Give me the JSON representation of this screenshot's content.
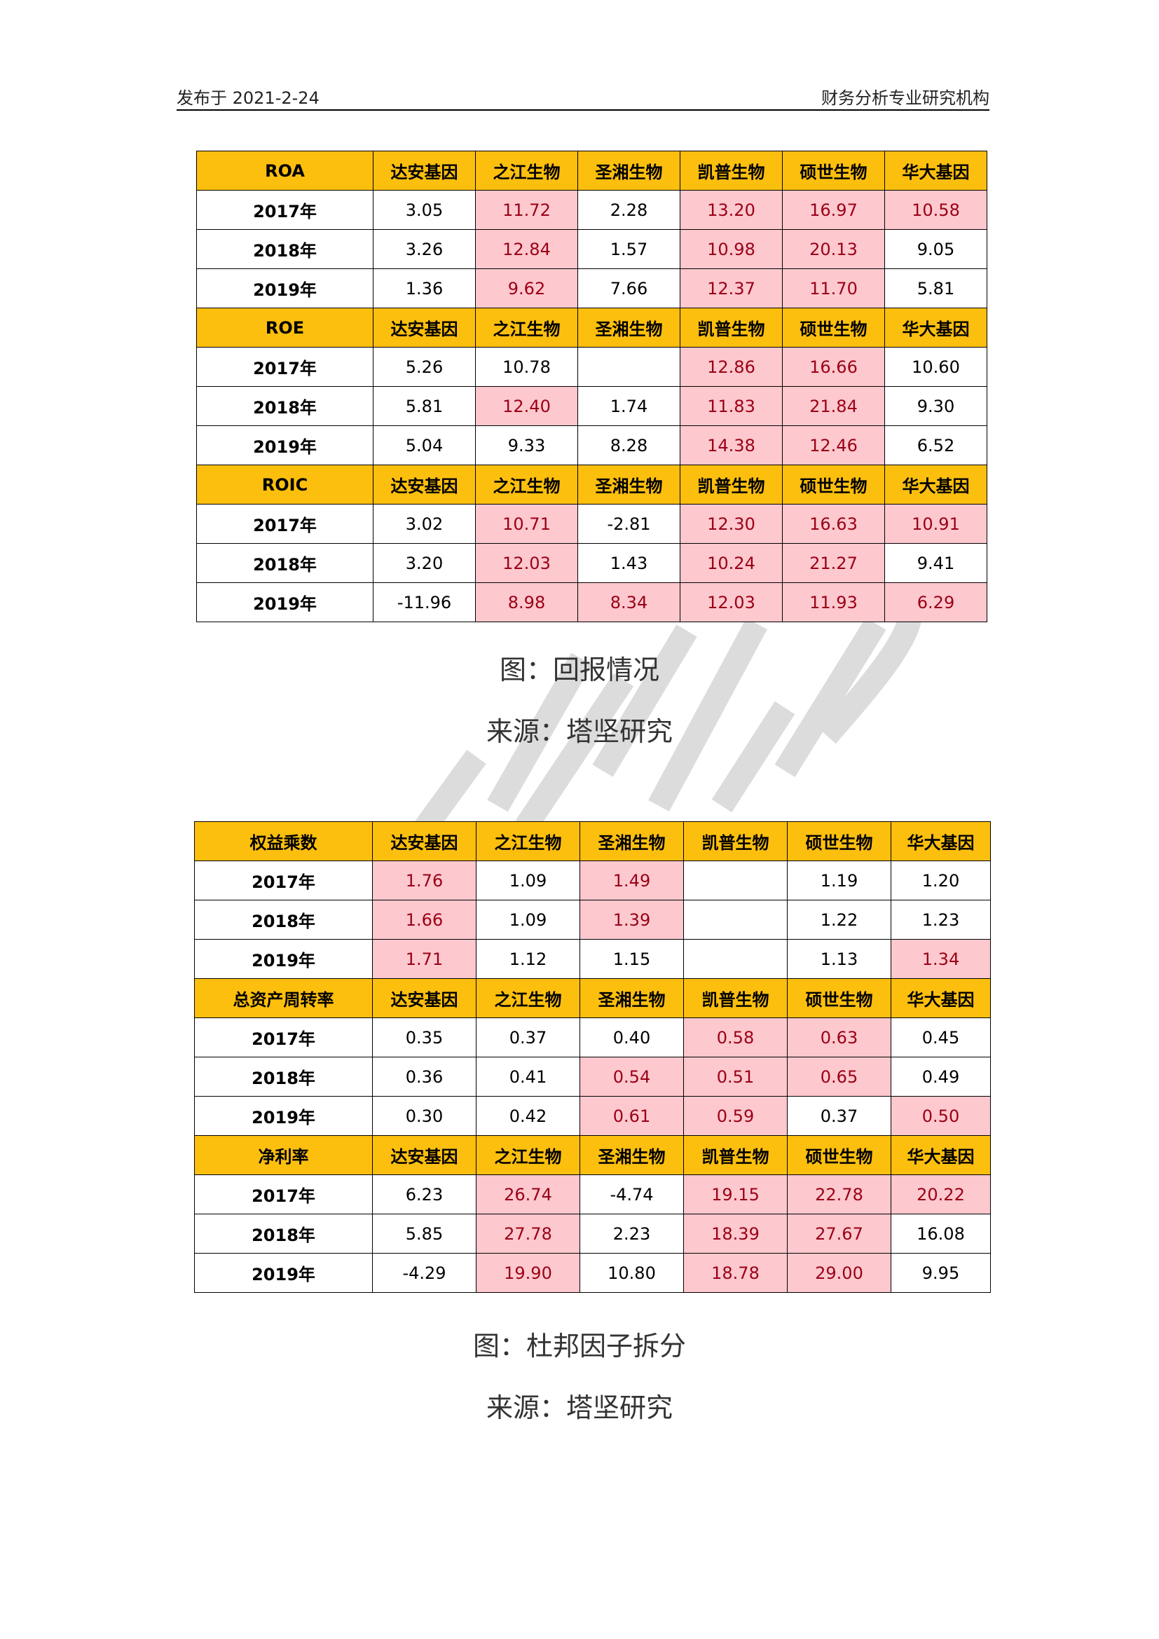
{
  "header": {
    "left": "发布于 2021-2-24",
    "right": "财务分析专业研究机构"
  },
  "watermark": {
    "text": "究",
    "color": "#dddddd"
  },
  "colors": {
    "header_fill": "#fdbf0e",
    "highlight_fill": "#fdc8ce",
    "highlight_text": "#9a0016"
  },
  "table1": {
    "sections": [
      {
        "header": [
          "ROA",
          "达安基因",
          "之江生物",
          "圣湘生物",
          "凯普生物",
          "硕世生物",
          "华大基因"
        ],
        "rows": [
          {
            "cells": [
              "2017年",
              "3.05",
              "11.72",
              "2.28",
              "13.20",
              "16.97",
              "10.58"
            ],
            "hl": [
              2,
              4,
              5,
              6
            ]
          },
          {
            "cells": [
              "2018年",
              "3.26",
              "12.84",
              "1.57",
              "10.98",
              "20.13",
              "9.05"
            ],
            "hl": [
              2,
              4,
              5
            ]
          },
          {
            "cells": [
              "2019年",
              "1.36",
              "9.62",
              "7.66",
              "12.37",
              "11.70",
              "5.81"
            ],
            "hl": [
              2,
              4,
              5
            ]
          }
        ]
      },
      {
        "header": [
          "ROE",
          "达安基因",
          "之江生物",
          "圣湘生物",
          "凯普生物",
          "硕世生物",
          "华大基因"
        ],
        "rows": [
          {
            "cells": [
              "2017年",
              "5.26",
              "10.78",
              "",
              "12.86",
              "16.66",
              "10.60"
            ],
            "hl": [
              4,
              5
            ]
          },
          {
            "cells": [
              "2018年",
              "5.81",
              "12.40",
              "1.74",
              "11.83",
              "21.84",
              "9.30"
            ],
            "hl": [
              2,
              4,
              5
            ]
          },
          {
            "cells": [
              "2019年",
              "5.04",
              "9.33",
              "8.28",
              "14.38",
              "12.46",
              "6.52"
            ],
            "hl": [
              4,
              5
            ]
          }
        ]
      },
      {
        "header": [
          "ROIC",
          "达安基因",
          "之江生物",
          "圣湘生物",
          "凯普生物",
          "硕世生物",
          "华大基因"
        ],
        "rows": [
          {
            "cells": [
              "2017年",
              "3.02",
              "10.71",
              "-2.81",
              "12.30",
              "16.63",
              "10.91"
            ],
            "hl": [
              2,
              4,
              5,
              6
            ]
          },
          {
            "cells": [
              "2018年",
              "3.20",
              "12.03",
              "1.43",
              "10.24",
              "21.27",
              "9.41"
            ],
            "hl": [
              2,
              4,
              5
            ]
          },
          {
            "cells": [
              "2019年",
              "-11.96",
              "8.98",
              "8.34",
              "12.03",
              "11.93",
              "6.29"
            ],
            "hl": [
              2,
              3,
              4,
              5,
              6
            ]
          }
        ]
      }
    ]
  },
  "caption1": {
    "title": "图：回报情况",
    "source": "来源：塔坚研究"
  },
  "table2": {
    "sections": [
      {
        "header": [
          "权益乘数",
          "达安基因",
          "之江生物",
          "圣湘生物",
          "凯普生物",
          "硕世生物",
          "华大基因"
        ],
        "rows": [
          {
            "cells": [
              "2017年",
              "1.76",
              "1.09",
              "1.49",
              "",
              "1.19",
              "1.20"
            ],
            "hl": [
              1,
              3
            ]
          },
          {
            "cells": [
              "2018年",
              "1.66",
              "1.09",
              "1.39",
              "",
              "1.22",
              "1.23"
            ],
            "hl": [
              1,
              3
            ]
          },
          {
            "cells": [
              "2019年",
              "1.71",
              "1.12",
              "1.15",
              "",
              "1.13",
              "1.34"
            ],
            "hl": [
              1,
              6
            ]
          }
        ]
      },
      {
        "header": [
          "总资产周转率",
          "达安基因",
          "之江生物",
          "圣湘生物",
          "凯普生物",
          "硕世生物",
          "华大基因"
        ],
        "rows": [
          {
            "cells": [
              "2017年",
              "0.35",
              "0.37",
              "0.40",
              "0.58",
              "0.63",
              "0.45"
            ],
            "hl": [
              4,
              5
            ]
          },
          {
            "cells": [
              "2018年",
              "0.36",
              "0.41",
              "0.54",
              "0.51",
              "0.65",
              "0.49"
            ],
            "hl": [
              3,
              4,
              5
            ]
          },
          {
            "cells": [
              "2019年",
              "0.30",
              "0.42",
              "0.61",
              "0.59",
              "0.37",
              "0.50"
            ],
            "hl": [
              3,
              4,
              6
            ]
          }
        ]
      },
      {
        "header": [
          "净利率",
          "达安基因",
          "之江生物",
          "圣湘生物",
          "凯普生物",
          "硕世生物",
          "华大基因"
        ],
        "rows": [
          {
            "cells": [
              "2017年",
              "6.23",
              "26.74",
              "-4.74",
              "19.15",
              "22.78",
              "20.22"
            ],
            "hl": [
              2,
              4,
              5,
              6
            ]
          },
          {
            "cells": [
              "2018年",
              "5.85",
              "27.78",
              "2.23",
              "18.39",
              "27.67",
              "16.08"
            ],
            "hl": [
              2,
              4,
              5
            ]
          },
          {
            "cells": [
              "2019年",
              "-4.29",
              "19.90",
              "10.80",
              "18.78",
              "29.00",
              "9.95"
            ],
            "hl": [
              2,
              4,
              5
            ]
          }
        ]
      }
    ]
  },
  "caption2": {
    "title": "图：杜邦因子拆分",
    "source": "来源：塔坚研究"
  }
}
